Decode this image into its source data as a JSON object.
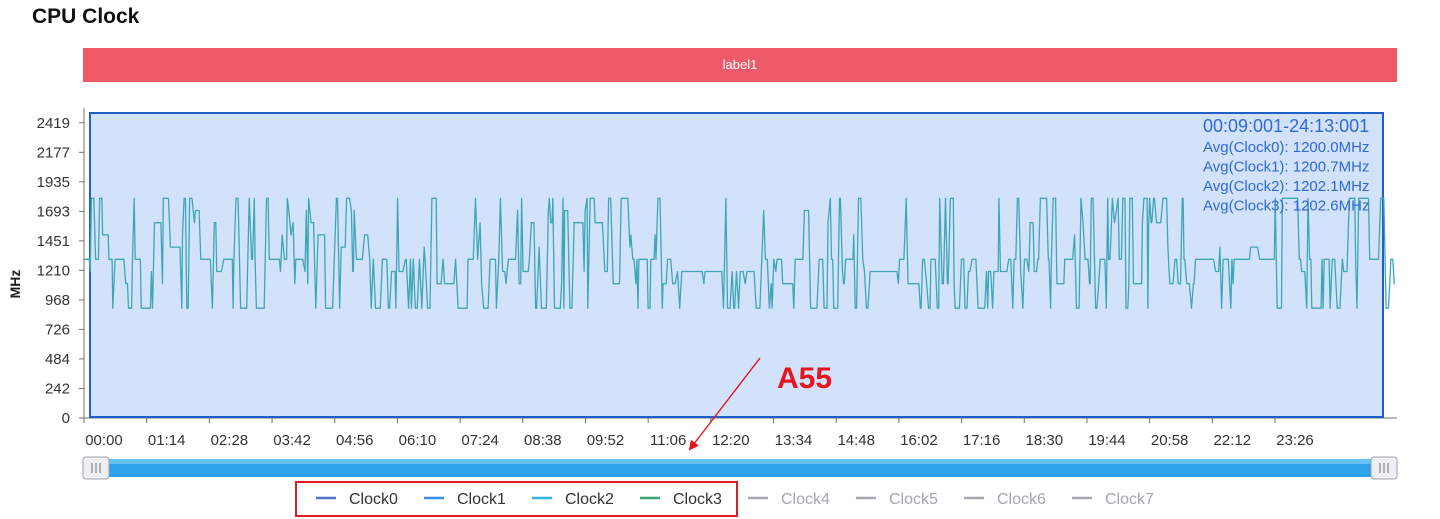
{
  "page": {
    "title": "CPU Clock"
  },
  "label_band": {
    "text": "label1",
    "color": "#ee5a68"
  },
  "selection": {
    "range_text": "00:09:001-24:13:001",
    "averages": [
      "Avg(Clock0): 1200.0MHz",
      "Avg(Clock1): 1200.7MHz",
      "Avg(Clock2): 1202.1MHz",
      "Avg(Clock3): 1202.6MHz"
    ],
    "fill_color": "#d3e2fb",
    "border_color": "#1f5fc8"
  },
  "annotation": {
    "text": "A55",
    "color": "#e8141e"
  },
  "chart_data": {
    "type": "line",
    "title": "CPU Clock",
    "ylabel": "MHz",
    "xlabel": "",
    "ylim": [
      0,
      2540
    ],
    "yticks": [
      0,
      242,
      484,
      726,
      968,
      1210,
      1451,
      1693,
      1935,
      2177,
      2419
    ],
    "xlim_minutes": [
      0,
      1550
    ],
    "xticks": [
      "00:00",
      "01:14",
      "02:28",
      "03:42",
      "04:56",
      "06:10",
      "07:24",
      "08:38",
      "09:52",
      "11:06",
      "12:20",
      "13:34",
      "14:48",
      "16:02",
      "17:16",
      "18:30",
      "19:44",
      "20:58",
      "22:12",
      "23:26"
    ],
    "clock_levels_mhz": [
      900,
      1100,
      1200,
      1300,
      1400,
      1500,
      1600,
      1700,
      1800
    ],
    "series_color": "#3ea6b4",
    "legend": {
      "position": "bottom",
      "items": [
        {
          "name": "Clock0",
          "color": "#5470c6",
          "active": true
        },
        {
          "name": "Clock1",
          "color": "#3d8ee6",
          "active": true
        },
        {
          "name": "Clock2",
          "color": "#2fb6d9",
          "active": true
        },
        {
          "name": "Clock3",
          "color": "#3aa57a",
          "active": true
        },
        {
          "name": "Clock4",
          "color": "#a5a8b0",
          "active": false
        },
        {
          "name": "Clock5",
          "color": "#a5a8b0",
          "active": false
        },
        {
          "name": "Clock6",
          "color": "#a5a8b0",
          "active": false
        },
        {
          "name": "Clock7",
          "color": "#a5a8b0",
          "active": false
        }
      ]
    },
    "grid": false
  }
}
